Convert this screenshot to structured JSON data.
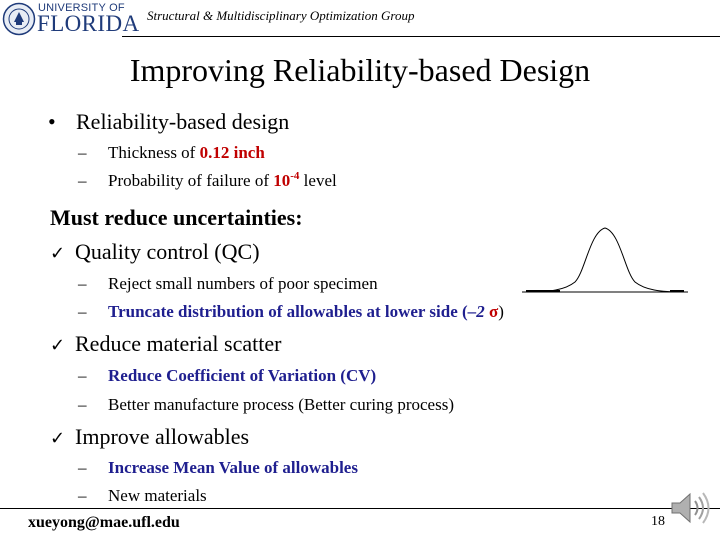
{
  "header": {
    "logo_small": "UNIVERSITY OF",
    "logo_big": "FLORIDA",
    "group": "Structural & Multidisciplinary Optimization Group"
  },
  "slide": {
    "title": "Improving Reliability-based Design",
    "bullet": {
      "label": "Reliability-based design",
      "items": [
        {
          "prefix": "Thickness of ",
          "value": "0.12 inch"
        },
        {
          "prefix": "Probability of failure of ",
          "base": "10",
          "exp": "-4",
          "suffix": " level"
        }
      ]
    },
    "heading": "Must reduce uncertainties:",
    "checks": [
      {
        "label": "Quality control (QC)",
        "items": [
          {
            "text": "Reject small numbers of poor specimen"
          },
          {
            "text": "Truncate distribution of allowables at lower side (",
            "math": "–2 ",
            "sigma": "σ",
            "close": ")"
          }
        ]
      },
      {
        "label": "Reduce material scatter",
        "items": [
          {
            "text": "Reduce Coefficient of Variation (CV)"
          },
          {
            "text": "Better manufacture process (Better curing process)"
          }
        ]
      },
      {
        "label": "Improve allowables",
        "items": [
          {
            "text": "Increase Mean Value of allowables"
          },
          {
            "text": "New materials"
          }
        ]
      }
    ],
    "glyphs": {
      "bullet": "•",
      "dash": "–",
      "check": "✓"
    }
  },
  "footer": {
    "email": "xueyong@mae.ufl.edu",
    "page": "18"
  },
  "icons": [
    "university-seal-icon",
    "normal-distribution-curve-icon",
    "speaker-icon"
  ],
  "colors": {
    "emphasis_red": "#c00000",
    "emphasis_blue": "#1f1f8f",
    "logo_blue": "#1f3b7a"
  }
}
